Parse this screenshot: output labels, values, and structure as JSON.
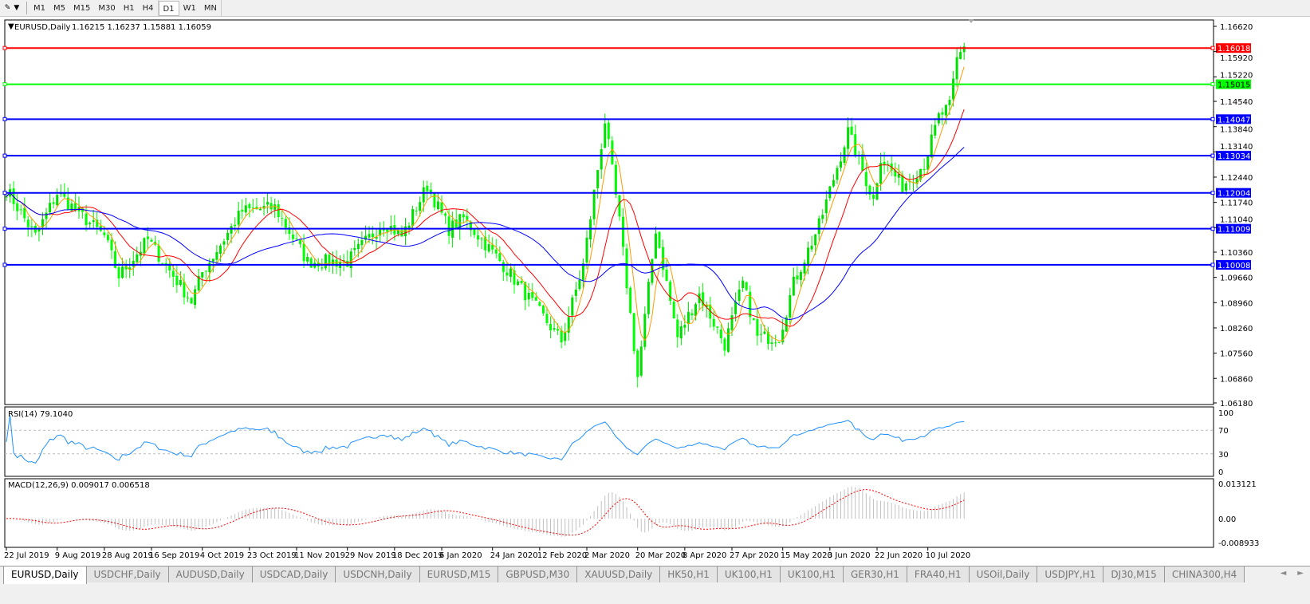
{
  "toolbar": {
    "timeframes": [
      "M1",
      "M5",
      "M15",
      "M30",
      "H1",
      "H4",
      "D1",
      "W1",
      "MN"
    ],
    "active": "D1"
  },
  "chart": {
    "header": "EURUSD,Daily",
    "ohlc": "1.16215 1.16237 1.15881 1.16059",
    "price_ticks": [
      "1.16620",
      "1.15920",
      "1.15220",
      "1.14540",
      "1.13840",
      "1.13140",
      "1.12440",
      "1.11740",
      "1.11040",
      "1.10360",
      "1.09660",
      "1.08960",
      "1.08260",
      "1.07560",
      "1.06860",
      "1.06180"
    ],
    "price_range": [
      1.0618,
      1.1662
    ],
    "levels": [
      {
        "label": "1.16018",
        "price": 1.16018,
        "color": "#ff0000"
      },
      {
        "label": "1.15015",
        "price": 1.15015,
        "color": "#00ff00"
      },
      {
        "label": "1.14047",
        "price": 1.14047,
        "color": "#0000ff"
      },
      {
        "label": "1.13034",
        "price": 1.13034,
        "color": "#0000ff"
      },
      {
        "label": "1.12004",
        "price": 1.12004,
        "color": "#0000ff"
      },
      {
        "label": "1.11009",
        "price": 1.11009,
        "color": "#0000ff"
      },
      {
        "label": "1.10008",
        "price": 1.10008,
        "color": "#0000ff"
      }
    ],
    "price_path": [
      [
        "2019-07-22",
        1.121
      ],
      [
        "2019-08-01",
        1.108
      ],
      [
        "2019-08-09",
        1.12
      ],
      [
        "2019-08-28",
        1.108
      ],
      [
        "2019-09-03",
        1.097
      ],
      [
        "2019-09-13",
        1.107
      ],
      [
        "2019-10-01",
        1.09
      ],
      [
        "2019-10-04",
        1.098
      ],
      [
        "2019-10-21",
        1.115
      ],
      [
        "2019-11-01",
        1.116
      ],
      [
        "2019-11-14",
        1.101
      ],
      [
        "2019-11-29",
        1.101
      ],
      [
        "2019-12-13",
        1.112
      ],
      [
        "2019-12-20",
        1.108
      ],
      [
        "2019-12-31",
        1.122
      ],
      [
        "2020-01-08",
        1.11
      ],
      [
        "2020-01-14",
        1.113
      ],
      [
        "2020-01-29",
        1.1
      ],
      [
        "2020-02-20",
        1.079
      ],
      [
        "2020-02-28",
        1.1
      ],
      [
        "2020-03-09",
        1.14
      ],
      [
        "2020-03-13",
        1.112
      ],
      [
        "2020-03-20",
        1.069
      ],
      [
        "2020-03-27",
        1.11
      ],
      [
        "2020-04-06",
        1.08
      ],
      [
        "2020-04-14",
        1.092
      ],
      [
        "2020-04-23",
        1.078
      ],
      [
        "2020-04-30",
        1.095
      ],
      [
        "2020-05-06",
        1.08
      ],
      [
        "2020-05-14",
        1.08
      ],
      [
        "2020-05-20",
        1.095
      ],
      [
        "2020-05-29",
        1.111
      ],
      [
        "2020-06-10",
        1.137
      ],
      [
        "2020-06-19",
        1.118
      ],
      [
        "2020-06-23",
        1.13
      ],
      [
        "2020-07-01",
        1.122
      ],
      [
        "2020-07-09",
        1.128
      ],
      [
        "2020-07-15",
        1.141
      ],
      [
        "2020-07-20",
        1.144
      ],
      [
        "2020-07-22",
        1.157
      ],
      [
        "2020-07-24",
        1.1606
      ]
    ],
    "moving_averages": [
      {
        "period": 5,
        "color": "#ff9900"
      },
      {
        "period": 13,
        "color": "#ff0000"
      },
      {
        "period": 34,
        "color": "#0000ff"
      }
    ],
    "candle_colors": {
      "bull": "#00e000",
      "bear": "#00ff00"
    }
  },
  "rsi": {
    "label": "RSI(14) 79.1040",
    "ticks": [
      "100",
      "70",
      "30",
      "0"
    ],
    "levels": [
      70,
      30
    ],
    "color": "#1e90ff"
  },
  "macd": {
    "label": "MACD(12,26,9) 0.009017 0.006518",
    "ticks": [
      "0.013121",
      "0.00",
      "-0.008933"
    ],
    "range": [
      -0.008933,
      0.013121
    ],
    "signal_color": "#ff0000",
    "hist_color": "#c0c0c0"
  },
  "date_labels": [
    [
      "2019-07-22",
      "22 Jul 2019"
    ],
    [
      "2019-08-09",
      "9 Aug 2019"
    ],
    [
      "2019-08-28",
      "28 Aug 2019"
    ],
    [
      "2019-09-16",
      "16 Sep 2019"
    ],
    [
      "2019-10-04",
      "4 Oct 2019"
    ],
    [
      "2019-10-23",
      "23 Oct 2019"
    ],
    [
      "2019-11-11",
      "11 Nov 2019"
    ],
    [
      "2019-11-29",
      "29 Nov 2019"
    ],
    [
      "2019-12-18",
      "18 Dec 2019"
    ],
    [
      "2020-01-06",
      "6 Jan 2020"
    ],
    [
      "2020-01-24",
      "24 Jan 2020"
    ],
    [
      "2020-02-12",
      "12 Feb 2020"
    ],
    [
      "2020-03-02",
      "2 Mar 2020"
    ],
    [
      "2020-03-20",
      "20 Mar 2020"
    ],
    [
      "2020-04-08",
      "8 Apr 2020"
    ],
    [
      "2020-04-27",
      "27 Apr 2020"
    ],
    [
      "2020-05-15",
      "15 May 2020"
    ],
    [
      "2020-06-03",
      "3 Jun 2020"
    ],
    [
      "2020-06-22",
      "22 Jun 2020"
    ],
    [
      "2020-07-10",
      "10 Jul 2020"
    ]
  ],
  "tabs": [
    "EURUSD,Daily",
    "USDCHF,Daily",
    "AUDUSD,Daily",
    "USDCAD,Daily",
    "USDCNH,Daily",
    "EURUSD,M15",
    "GBPUSD,M30",
    "XAUUSD,Daily",
    "HK50,H1",
    "UK100,H1",
    "UK100,H1",
    "GER30,H1",
    "FRA40,H1",
    "USOil,Daily",
    "USDJPY,H1",
    "DJ30,M15",
    "CHINA300,H4"
  ],
  "active_tab": 0
}
